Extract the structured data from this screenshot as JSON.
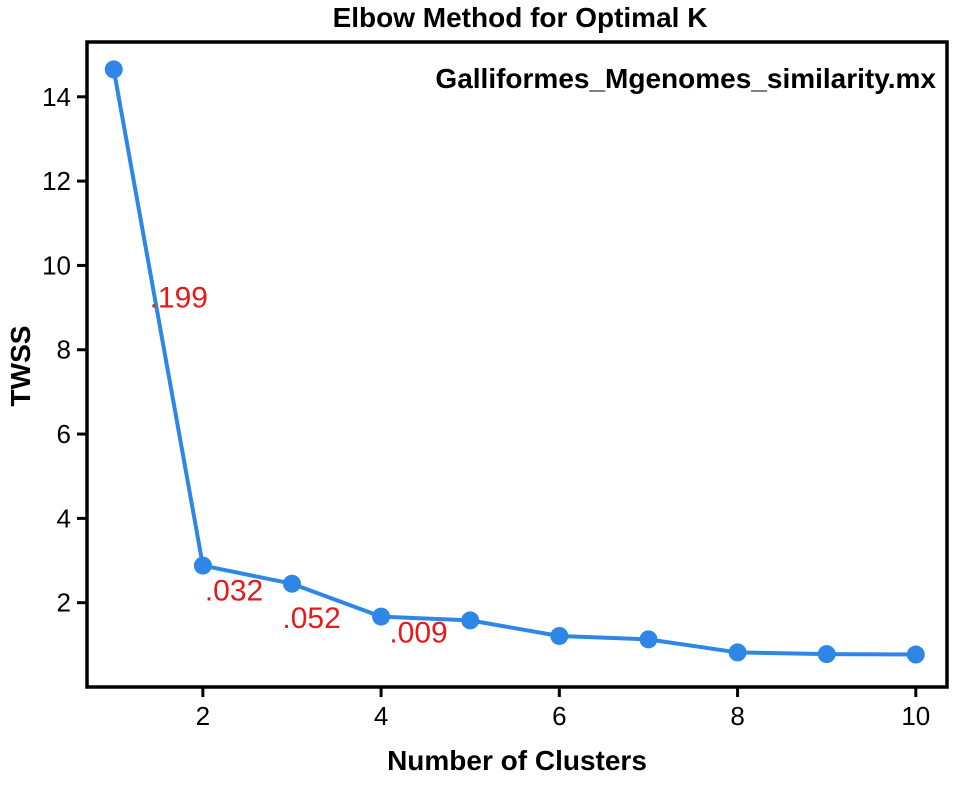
{
  "chart_data": {
    "type": "line",
    "title": "Elbow Method for Optimal K",
    "subtitle": "Galliformes_Mgenomes_similarity.mx",
    "xlabel": "Number of Clusters",
    "ylabel": "TWSS",
    "xlim": [
      0.7,
      10.35
    ],
    "ylim": [
      0,
      15.3
    ],
    "xticks": [
      2,
      4,
      6,
      8,
      10
    ],
    "yticks": [
      2,
      4,
      6,
      8,
      10,
      12,
      14
    ],
    "grid": false,
    "line_color": "#2e86e6",
    "annotation_color": "#e41a1c",
    "series": [
      {
        "x": [
          1,
          2,
          3,
          4,
          5,
          6,
          7,
          8,
          9,
          10
        ],
        "values": [
          14.65,
          2.88,
          2.45,
          1.67,
          1.58,
          1.21,
          1.13,
          0.82,
          0.78,
          0.77
        ]
      }
    ],
    "annotations": [
      {
        "text": ".199",
        "x": 1.73,
        "y": 9.0
      },
      {
        "text": ".032",
        "x": 2.35,
        "y": 2.05
      },
      {
        "text": ".052",
        "x": 3.22,
        "y": 1.4
      },
      {
        "text": ".009",
        "x": 4.42,
        "y": 1.05
      }
    ]
  }
}
